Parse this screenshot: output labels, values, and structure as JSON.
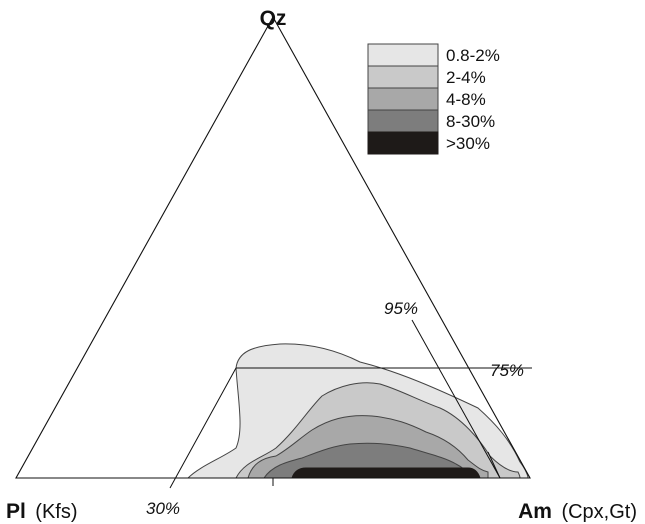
{
  "apex_labels": {
    "top": "Qz",
    "left_bold": "Pl",
    "left_sub": "(Kfs)",
    "right_bold": "Am",
    "right_sub": "(Cpx,Gt)"
  },
  "line_labels": {
    "p95": "95%",
    "p75": "75%",
    "p30": "30%"
  },
  "legend": [
    {
      "label": "0.8-2%",
      "color": "#e6e6e6"
    },
    {
      "label": "2-4%",
      "color": "#c9c9c9"
    },
    {
      "label": "4-8%",
      "color": "#a8a8a8"
    },
    {
      "label": "8-30%",
      "color": "#7d7d7d"
    },
    {
      "label": ">30%",
      "color": "#1e1a18"
    }
  ]
}
